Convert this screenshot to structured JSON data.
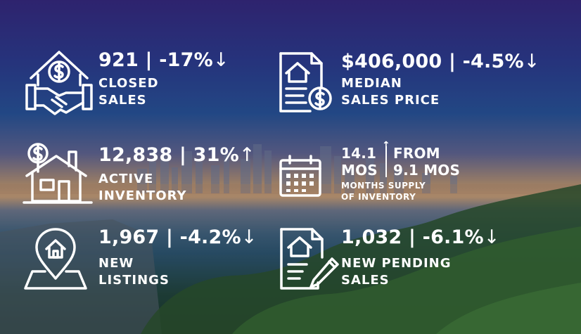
{
  "colors": {
    "text": "#ffffff",
    "icon_stroke": "#ffffff"
  },
  "stats": {
    "closed_sales": {
      "value": "921 | -17%",
      "arrow": "↓",
      "label_line1": "CLOSED",
      "label_line2": "SALES",
      "icon": "house-handshake-dollar-icon"
    },
    "median_price": {
      "value": "$406,000 | -4.5%",
      "arrow": "↓",
      "label_line1": "MEDIAN",
      "label_line2": "SALES PRICE",
      "icon": "document-house-dollar-icon"
    },
    "active_inventory": {
      "value": "12,838 | 31%",
      "arrow": "↑",
      "label_line1": "ACTIVE",
      "label_line2": "INVENTORY",
      "icon": "house-dollar-tag-icon"
    },
    "months_supply": {
      "current_top": "14.1",
      "current_bottom": "MOS",
      "arrow": "↑",
      "from_top": "FROM",
      "from_bottom": "9.1 MOS",
      "label_line1": "MONTHS SUPPLY",
      "label_line2": "OF INVENTORY",
      "icon": "calendar-icon"
    },
    "new_listings": {
      "value": "1,967 | -4.2%",
      "arrow": "↓",
      "label_line1": "NEW",
      "label_line2": "LISTINGS",
      "icon": "house-location-pin-icon"
    },
    "new_pending": {
      "value": "1,032 | -6.1%",
      "arrow": "↓",
      "label_line1": "NEW PENDING",
      "label_line2": "SALES",
      "icon": "document-house-pen-icon"
    }
  }
}
